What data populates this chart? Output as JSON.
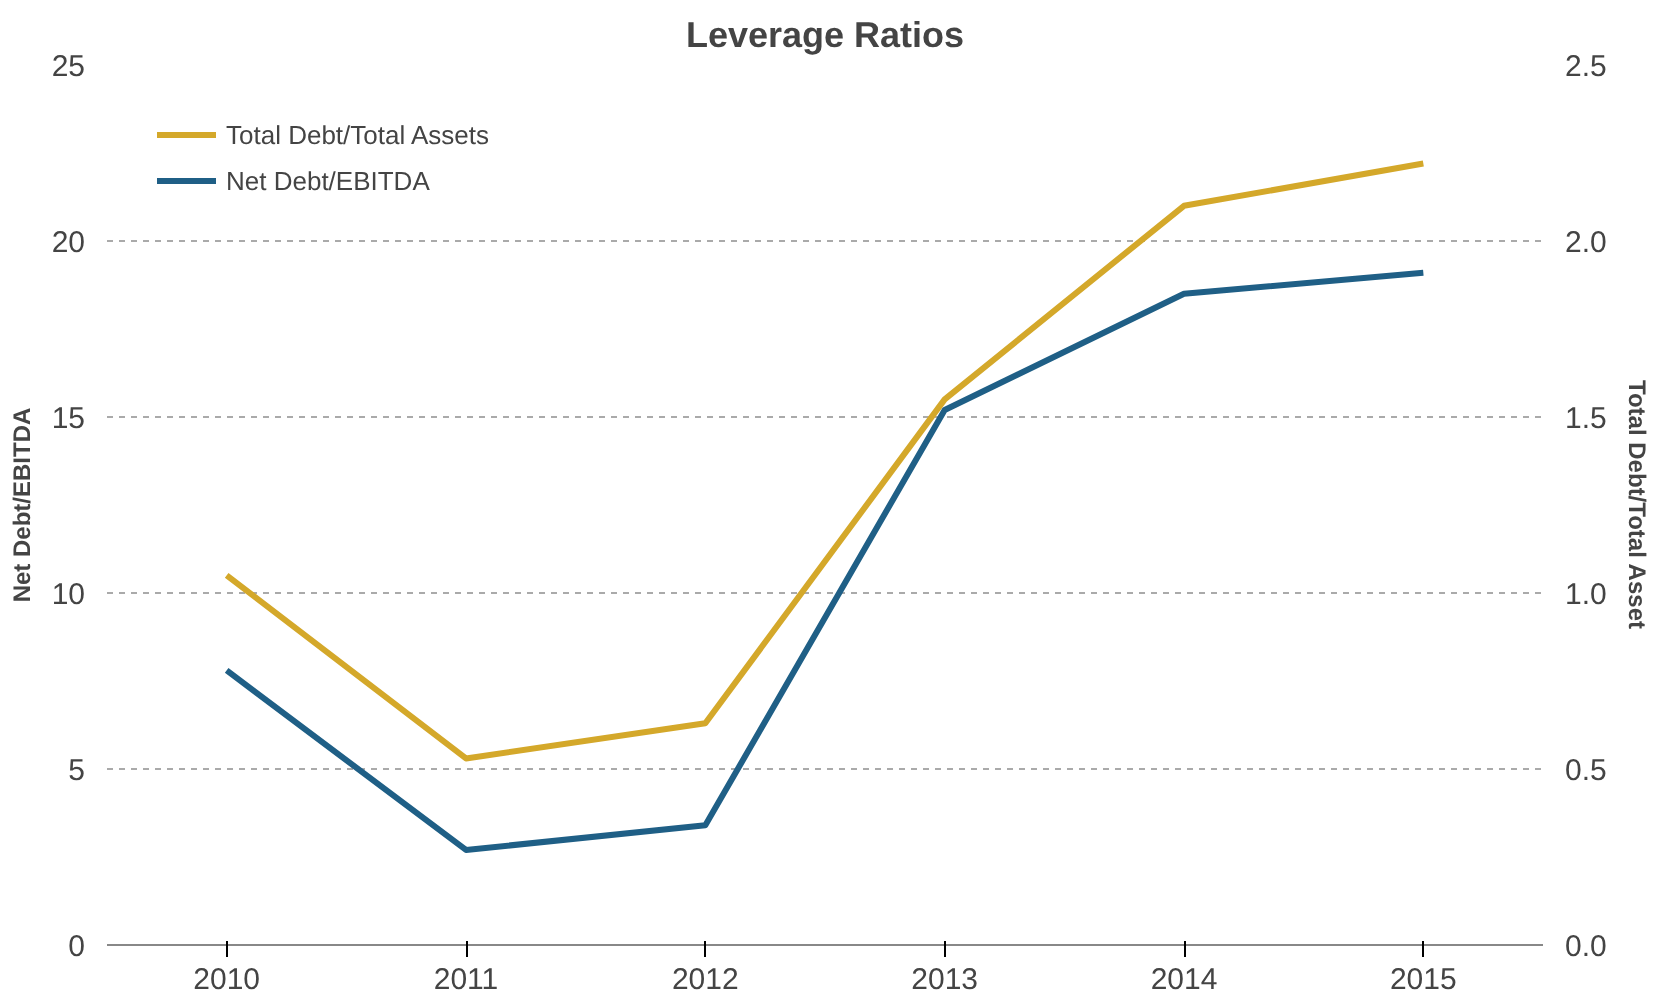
{
  "chart_data": {
    "type": "line",
    "title": "Leverage Ratios",
    "ylabel": "Net Debt/EBITDA",
    "y2label": "Total Debt/Total Asset",
    "categories": [
      "2010",
      "2011",
      "2012",
      "2013",
      "2014",
      "2015"
    ],
    "series": [
      {
        "name": "Total Debt/Total Assets",
        "color": "#d4a82a",
        "axis": "y2",
        "values": [
          1.05,
          0.53,
          0.63,
          1.55,
          2.1,
          2.22
        ]
      },
      {
        "name": "Net Debt/EBITDA",
        "color": "#1f5f86",
        "values": [
          7.8,
          2.7,
          3.4,
          15.2,
          18.5,
          19.1
        ]
      }
    ],
    "ylim": [
      0,
      25
    ],
    "yticks": [
      0,
      5,
      10,
      15,
      20,
      25
    ],
    "y2lim": [
      0,
      2.5
    ],
    "y2ticks": [
      {
        "value": 0,
        "label": "0.0"
      },
      {
        "value": 0.5,
        "label": "0.5"
      },
      {
        "value": 1,
        "label": "1.0"
      },
      {
        "value": 1.5,
        "label": "1.5"
      },
      {
        "value": 2,
        "label": "2.0"
      },
      {
        "value": 2.5,
        "label": "2.5"
      }
    ],
    "grid": "y",
    "legend": "top left",
    "marker": "none",
    "line_style": "solid"
  }
}
